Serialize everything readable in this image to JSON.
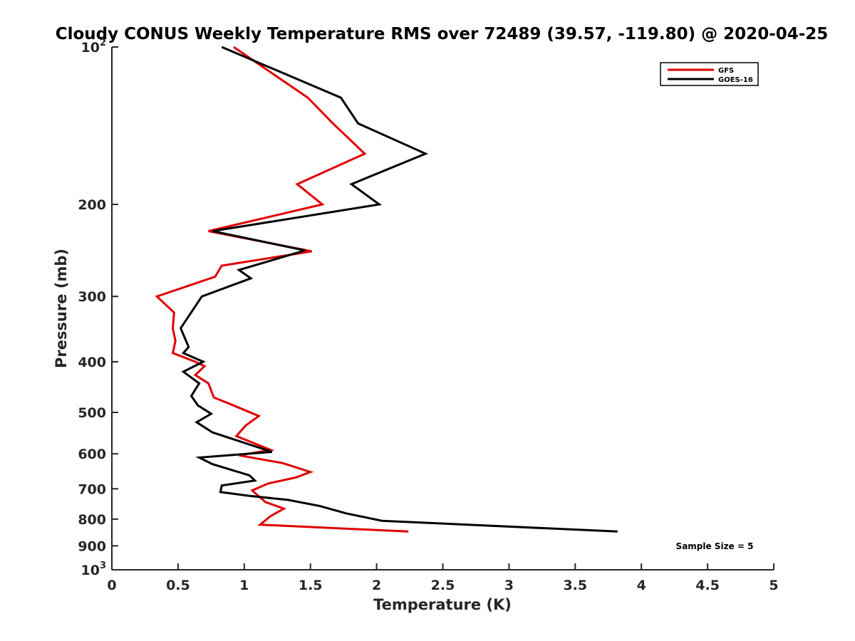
{
  "chart_data": {
    "type": "line",
    "title": "Cloudy CONUS Weekly Temperature RMS over 72489 (39.57, -119.80) @ 2020-04-25",
    "xlabel": "Temperature (K)",
    "ylabel": "Pressure (mb)",
    "xlim": [
      0,
      5
    ],
    "ylim": [
      100,
      1000
    ],
    "yscale": "log",
    "y_reversed": true,
    "x_ticks": [
      "0",
      "0.5",
      "1",
      "1.5",
      "2",
      "2.5",
      "3",
      "3.5",
      "4",
      "4.5",
      "5"
    ],
    "y_ticks": [
      {
        "value": 100,
        "base": "10",
        "exp": "2"
      },
      {
        "value": 200,
        "label": "200"
      },
      {
        "value": 300,
        "label": "300"
      },
      {
        "value": 400,
        "label": "400"
      },
      {
        "value": 500,
        "label": "500"
      },
      {
        "value": 600,
        "label": "600"
      },
      {
        "value": 700,
        "label": "700"
      },
      {
        "value": 800,
        "label": "800"
      },
      {
        "value": 900,
        "label": "900"
      },
      {
        "value": 1000,
        "base": "10",
        "exp": "3"
      }
    ],
    "grid": false,
    "legend_position": "top-right",
    "annotation": "Sample Size = 5",
    "series": [
      {
        "name": "GFS",
        "color": "#e00000",
        "points": [
          [
            0.92,
            100
          ],
          [
            1.48,
            125
          ],
          [
            1.67,
            140
          ],
          [
            1.91,
            160
          ],
          [
            1.4,
            183
          ],
          [
            1.59,
            200
          ],
          [
            0.73,
            225
          ],
          [
            1.51,
            246
          ],
          [
            0.83,
            262
          ],
          [
            0.78,
            275
          ],
          [
            0.34,
            300
          ],
          [
            0.47,
            322
          ],
          [
            0.46,
            345
          ],
          [
            0.48,
            365
          ],
          [
            0.46,
            385
          ],
          [
            0.63,
            400
          ],
          [
            0.7,
            408
          ],
          [
            0.63,
            424
          ],
          [
            0.73,
            440
          ],
          [
            0.77,
            468
          ],
          [
            0.92,
            485
          ],
          [
            1.11,
            508
          ],
          [
            1.01,
            530
          ],
          [
            0.94,
            555
          ],
          [
            1.2,
            590
          ],
          [
            0.96,
            604
          ],
          [
            1.29,
            625
          ],
          [
            1.5,
            650
          ],
          [
            1.39,
            666
          ],
          [
            1.18,
            684
          ],
          [
            1.06,
            705
          ],
          [
            1.16,
            742
          ],
          [
            1.3,
            764
          ],
          [
            1.2,
            789
          ],
          [
            1.12,
            820
          ],
          [
            2.24,
            845
          ]
        ]
      },
      {
        "name": "GOES-16",
        "color": "#000000",
        "points": [
          [
            0.83,
            100
          ],
          [
            1.73,
            125
          ],
          [
            1.86,
            140
          ],
          [
            2.37,
            160
          ],
          [
            1.81,
            183
          ],
          [
            2.02,
            200
          ],
          [
            0.76,
            225
          ],
          [
            1.46,
            245
          ],
          [
            0.96,
            267
          ],
          [
            1.05,
            277
          ],
          [
            0.68,
            300
          ],
          [
            0.52,
            345
          ],
          [
            0.58,
            375
          ],
          [
            0.54,
            385
          ],
          [
            0.69,
            400
          ],
          [
            0.54,
            418
          ],
          [
            0.66,
            440
          ],
          [
            0.6,
            465
          ],
          [
            0.65,
            485
          ],
          [
            0.75,
            503
          ],
          [
            0.64,
            522
          ],
          [
            0.76,
            546
          ],
          [
            1.21,
            595
          ],
          [
            0.66,
            610
          ],
          [
            0.76,
            628
          ],
          [
            1.04,
            660
          ],
          [
            1.08,
            675
          ],
          [
            0.83,
            690
          ],
          [
            0.82,
            710
          ],
          [
            1.04,
            722
          ],
          [
            1.33,
            735
          ],
          [
            1.57,
            755
          ],
          [
            1.77,
            780
          ],
          [
            2.04,
            806
          ],
          [
            3.82,
            845
          ]
        ]
      }
    ]
  }
}
